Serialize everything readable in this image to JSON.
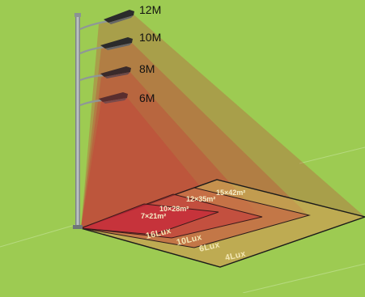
{
  "heights": [
    {
      "id": "12m",
      "label": "12M"
    },
    {
      "id": "10m",
      "label": "10M"
    },
    {
      "id": "8m",
      "label": "8M"
    },
    {
      "id": "6m",
      "label": "6M"
    }
  ],
  "coverage": [
    {
      "id": "15x42",
      "text": "15×42m²"
    },
    {
      "id": "12x35",
      "text": "12×35m²"
    },
    {
      "id": "10x28",
      "text": "10×28m²"
    },
    {
      "id": "7x21",
      "text": "7×21m²"
    }
  ],
  "illuminance": [
    {
      "id": "16lux",
      "text": "16Lux"
    },
    {
      "id": "10lux",
      "text": "10Lux"
    },
    {
      "id": "6lux",
      "text": "6Lux"
    },
    {
      "id": "4lux",
      "text": "4Lux"
    }
  ],
  "colors": {
    "background": "#9dcb52",
    "beam": "#c2453a",
    "ground_zone": "#c8383a",
    "pole": "#9aa3a3",
    "label": "#111111"
  }
}
